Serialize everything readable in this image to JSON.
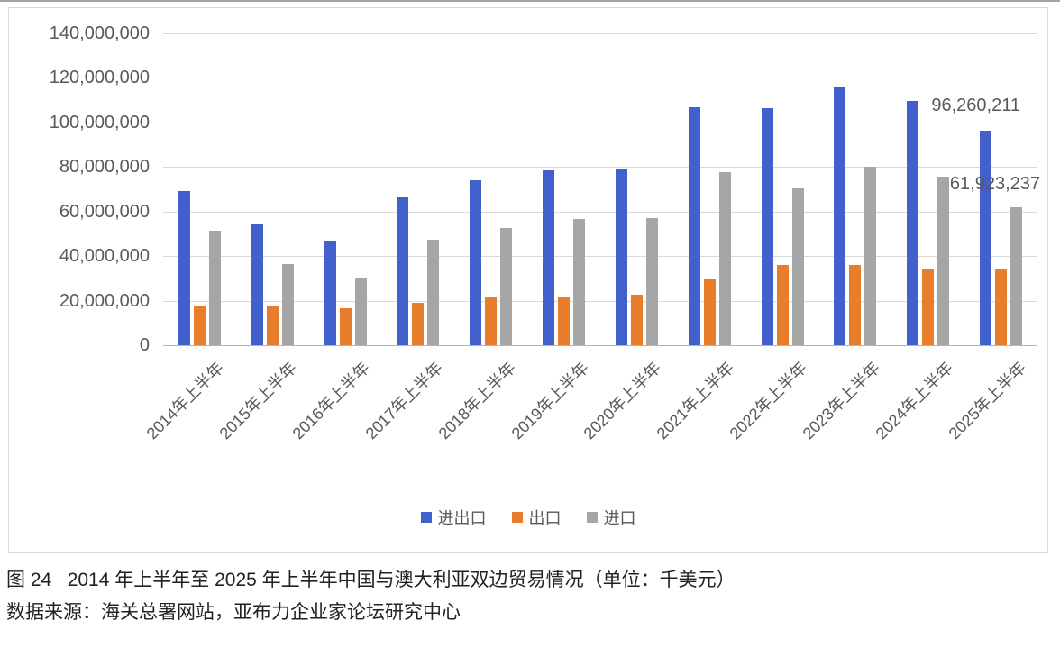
{
  "chart_data": {
    "type": "bar",
    "title": "",
    "unit": "千美元",
    "categories": [
      "2014年上半年",
      "2015年上半年",
      "2016年上半年",
      "2017年上半年",
      "2018年上半年",
      "2019年上半年",
      "2020年上半年",
      "2021年上半年",
      "2022年上半年",
      "2023年上半年",
      "2024年上半年",
      "2025年上半年"
    ],
    "series": [
      {
        "key": "total",
        "name": "进出口",
        "color": "#4160cb",
        "values": [
          69000000,
          54500000,
          47000000,
          66500000,
          74000000,
          78500000,
          79500000,
          107000000,
          106500000,
          116000000,
          109500000,
          96260211
        ]
      },
      {
        "key": "export",
        "name": "出口",
        "color": "#e87d2b",
        "values": [
          17500000,
          18000000,
          16500000,
          19000000,
          21500000,
          22000000,
          22500000,
          29500000,
          36000000,
          36000000,
          34000000,
          34336974
        ]
      },
      {
        "key": "import",
        "name": "进口",
        "color": "#a6a6a6",
        "values": [
          51500000,
          36500000,
          30500000,
          47500000,
          52500000,
          56500000,
          57000000,
          77500000,
          70500000,
          80000000,
          75500000,
          61923237
        ]
      }
    ],
    "ylim": [
      0,
      140000000
    ],
    "grid": "horizontal",
    "legend_position": "bottom",
    "y_ticks": [
      {
        "value": 0,
        "label": "0"
      },
      {
        "value": 20000000,
        "label": "20,000,000"
      },
      {
        "value": 40000000,
        "label": "40,000,000"
      },
      {
        "value": 60000000,
        "label": "60,000,000"
      },
      {
        "value": 80000000,
        "label": "80,000,000"
      },
      {
        "value": 100000000,
        "label": "100,000,000"
      },
      {
        "value": 120000000,
        "label": "120,000,000"
      },
      {
        "value": 140000000,
        "label": "140,000,000"
      }
    ],
    "annotations": [
      {
        "text": "96,260,211",
        "series": "进出口",
        "category": "2025年上半年"
      },
      {
        "text": "61,923,237",
        "series": "进口",
        "category": "2025年上半年"
      }
    ]
  },
  "caption": {
    "line1": "图 24   2014 年上半年至 2025 年上半年中国与澳大利亚双边贸易情况（单位：千美元）",
    "line2": "数据来源：海关总署网站，亚布力企业家论坛研究中心"
  }
}
